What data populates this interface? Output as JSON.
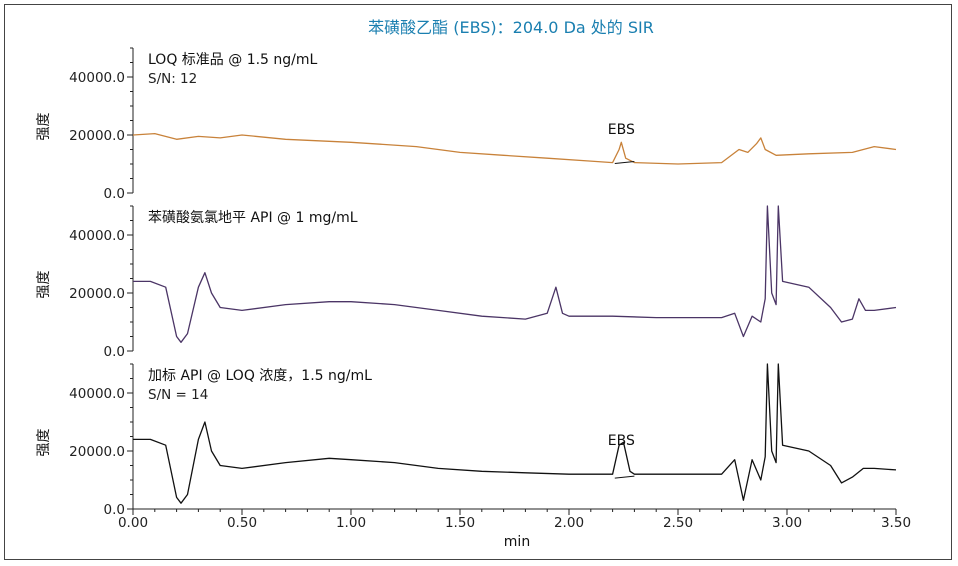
{
  "title": "苯磺酸乙酯 (EBS)：204.0 Da 处的 SIR",
  "colors": {
    "title": "#1a7fb0",
    "panel1": "#c8823a",
    "panel2": "#4b3566",
    "panel3": "#111111"
  },
  "chart_data": {
    "type": "line",
    "title": "苯磺酸乙酯 (EBS)：204.0 Da 处的 SIR",
    "xlabel": "min",
    "xlim": [
      0,
      3.5
    ],
    "x_ticks": [
      "0.00",
      "0.50",
      "1.00",
      "1.50",
      "2.00",
      "2.50",
      "3.00",
      "3.50"
    ],
    "panels": [
      {
        "label": "LOQ 标准品 @ 1.5 ng/mL",
        "sublabel": "S/N: 12",
        "ylabel": "强度",
        "ylim": [
          0,
          50000
        ],
        "y_ticks": [
          "0.0",
          "20000.0",
          "40000.0"
        ],
        "peak_label": "EBS",
        "peak_x": 2.24,
        "x": [
          0,
          0.1,
          0.2,
          0.3,
          0.4,
          0.5,
          0.7,
          1.0,
          1.3,
          1.5,
          1.7,
          1.9,
          2.1,
          2.2,
          2.23,
          2.24,
          2.26,
          2.3,
          2.5,
          2.7,
          2.78,
          2.82,
          2.86,
          2.88,
          2.9,
          2.95,
          3.1,
          3.3,
          3.4,
          3.5
        ],
        "y": [
          20000,
          20500,
          18500,
          19500,
          19000,
          20000,
          18500,
          17500,
          16000,
          14000,
          13000,
          12000,
          11000,
          10500,
          15000,
          17500,
          12000,
          10500,
          10000,
          10500,
          15000,
          14000,
          17000,
          19000,
          15000,
          13000,
          13500,
          14000,
          16000,
          15000
        ]
      },
      {
        "label": "苯磺酸氨氯地平 API @ 1 mg/mL",
        "sublabel": "",
        "ylabel": "强度",
        "ylim": [
          0,
          50000
        ],
        "y_ticks": [
          "0.0",
          "20000.0",
          "40000.0"
        ],
        "peak_label": "",
        "x": [
          0,
          0.08,
          0.15,
          0.2,
          0.22,
          0.25,
          0.3,
          0.33,
          0.36,
          0.4,
          0.5,
          0.7,
          0.9,
          1.0,
          1.2,
          1.4,
          1.6,
          1.8,
          1.9,
          1.94,
          1.97,
          2.0,
          2.2,
          2.4,
          2.6,
          2.7,
          2.76,
          2.8,
          2.84,
          2.88,
          2.9,
          2.91,
          2.93,
          2.95,
          2.96,
          2.98,
          3.1,
          3.2,
          3.25,
          3.3,
          3.33,
          3.36,
          3.4,
          3.5
        ],
        "y": [
          24000,
          24000,
          22000,
          5000,
          3000,
          6000,
          22000,
          27000,
          20000,
          15000,
          14000,
          16000,
          17000,
          17000,
          16000,
          14000,
          12000,
          11000,
          13000,
          22000,
          13000,
          12000,
          12000,
          11500,
          11500,
          11500,
          13000,
          5000,
          12000,
          10000,
          18000,
          50000,
          20000,
          16000,
          50000,
          24000,
          22000,
          15000,
          10000,
          11000,
          18000,
          14000,
          14000,
          15000
        ]
      },
      {
        "label": "加标 API @ LOQ 浓度，1.5 ng/mL",
        "sublabel": "S/N = 14",
        "ylabel": "强度",
        "ylim": [
          0,
          50000
        ],
        "y_ticks": [
          "0.0",
          "20000.0",
          "40000.0"
        ],
        "peak_label": "EBS",
        "peak_x": 2.24,
        "x": [
          0,
          0.08,
          0.15,
          0.2,
          0.22,
          0.25,
          0.3,
          0.33,
          0.36,
          0.4,
          0.5,
          0.7,
          0.9,
          1.0,
          1.2,
          1.4,
          1.6,
          1.8,
          2.0,
          2.2,
          2.23,
          2.25,
          2.28,
          2.3,
          2.5,
          2.7,
          2.76,
          2.8,
          2.84,
          2.88,
          2.9,
          2.91,
          2.93,
          2.95,
          2.96,
          2.98,
          3.1,
          3.2,
          3.25,
          3.3,
          3.35,
          3.4,
          3.5
        ],
        "y": [
          24000,
          24000,
          22000,
          4000,
          2000,
          5000,
          24000,
          30000,
          20000,
          15000,
          14000,
          16000,
          17500,
          17000,
          16000,
          14000,
          13000,
          12500,
          12000,
          12000,
          22000,
          23000,
          13000,
          12000,
          12000,
          12000,
          17000,
          3000,
          17000,
          10000,
          18000,
          50000,
          20000,
          16000,
          50000,
          22000,
          20000,
          15000,
          9000,
          11000,
          14000,
          14000,
          13500
        ]
      }
    ]
  }
}
